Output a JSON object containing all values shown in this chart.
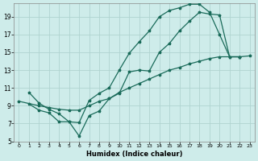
{
  "xlabel": "Humidex (Indice chaleur)",
  "bg_color": "#ceecea",
  "grid_color": "#b0d4d0",
  "line_color": "#1a6b5a",
  "xlim": [
    -0.5,
    23.5
  ],
  "ylim": [
    5,
    20.5
  ],
  "xticks": [
    0,
    1,
    2,
    3,
    4,
    5,
    6,
    7,
    8,
    9,
    10,
    11,
    12,
    13,
    14,
    15,
    16,
    17,
    18,
    19,
    20,
    21,
    22,
    23
  ],
  "yticks": [
    5,
    7,
    9,
    11,
    13,
    15,
    17,
    19
  ],
  "line1": {
    "x": [
      1,
      2,
      3,
      4,
      5,
      6,
      7,
      8,
      9,
      10,
      11,
      12,
      13,
      14,
      15,
      16,
      17,
      18,
      19,
      20,
      21,
      22
    ],
    "y": [
      10.5,
      9.3,
      8.6,
      8.1,
      7.2,
      7.1,
      9.6,
      10.4,
      11.0,
      13.0,
      14.9,
      16.2,
      17.4,
      19.0,
      19.7,
      20.0,
      20.4,
      20.4,
      19.5,
      17.0,
      14.5,
      14.5
    ]
  },
  "line2": {
    "x": [
      1,
      2,
      3,
      4,
      5,
      6,
      7,
      8,
      9,
      10,
      11,
      12,
      13,
      14,
      15,
      16,
      17,
      18,
      19,
      20,
      21,
      22
    ],
    "y": [
      9.2,
      8.5,
      8.2,
      7.2,
      7.2,
      5.6,
      7.9,
      8.4,
      9.8,
      10.4,
      12.8,
      13.0,
      12.9,
      15.0,
      16.0,
      17.4,
      18.5,
      19.5,
      19.3,
      19.2,
      14.5,
      14.5
    ]
  },
  "line3": {
    "x": [
      0,
      2,
      3,
      4,
      5,
      6,
      7,
      8,
      9,
      10,
      11,
      12,
      13,
      14,
      15,
      16,
      17,
      18,
      19,
      20,
      22,
      23
    ],
    "y": [
      9.5,
      9.0,
      8.8,
      8.6,
      8.5,
      8.5,
      9.0,
      9.5,
      9.8,
      10.5,
      11.0,
      11.5,
      12.0,
      12.5,
      13.0,
      13.3,
      13.7,
      14.0,
      14.3,
      14.5,
      14.5,
      14.6
    ]
  }
}
